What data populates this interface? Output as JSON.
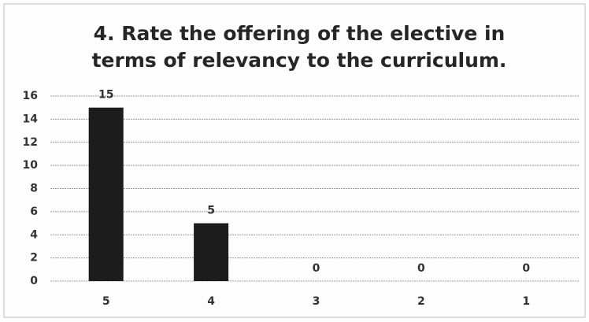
{
  "chart_data": {
    "type": "bar",
    "title": "4. Rate the offering of the elective in terms of relevancy to the curriculum.",
    "categories": [
      "5",
      "4",
      "3",
      "2",
      "1"
    ],
    "values": [
      15,
      5,
      0,
      0,
      0
    ],
    "color": "#1c1c1c",
    "ylim": [
      0,
      16
    ],
    "yticks": [
      0,
      2,
      4,
      6,
      8,
      10,
      12,
      14,
      16
    ],
    "grid": true
  }
}
